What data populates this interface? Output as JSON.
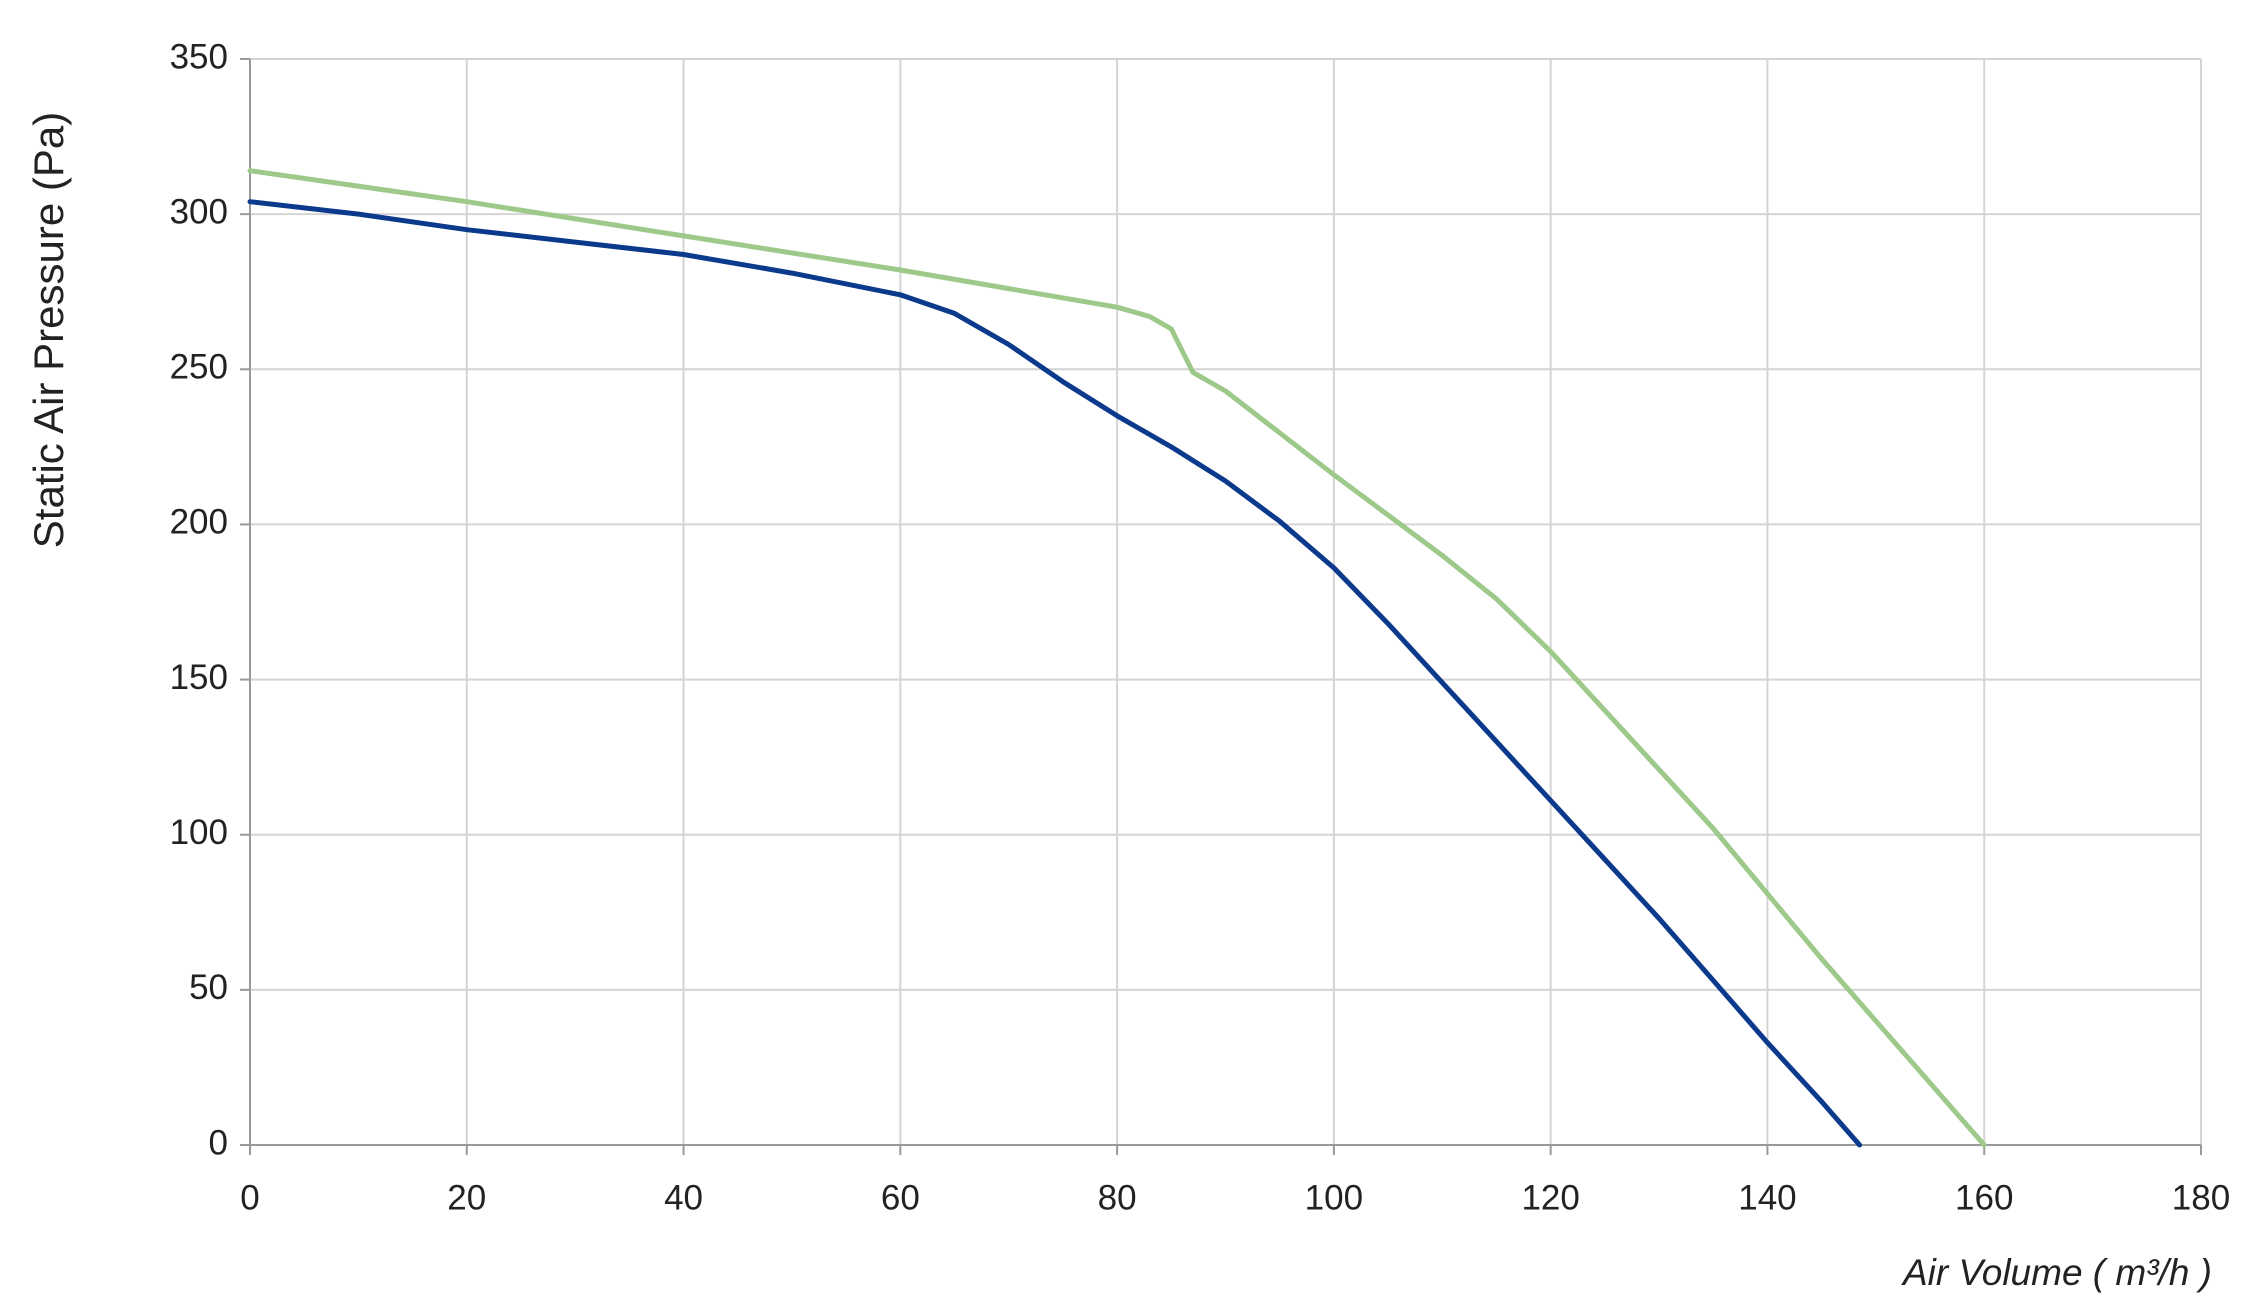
{
  "chart_data": {
    "type": "line",
    "xlabel": "Air Volume ( m³/h )",
    "ylabel": "Static Air Pressure  (Pa)",
    "xlim": [
      0,
      180
    ],
    "xticks": [
      0,
      20,
      40,
      60,
      80,
      100,
      120,
      140,
      160,
      180
    ],
    "ylim": [
      0,
      350
    ],
    "yticks": [
      0,
      50,
      100,
      150,
      200,
      250,
      300,
      350
    ],
    "grid": true,
    "series": [
      {
        "color": "#0b3a8c",
        "x": [
          0,
          10,
          20,
          30,
          40,
          50,
          60,
          65,
          70,
          75,
          80,
          85,
          90,
          95,
          100,
          105,
          110,
          115,
          120,
          125,
          130,
          135,
          140,
          145,
          148.5
        ],
        "values": [
          304,
          300,
          295,
          291,
          287,
          281,
          274,
          268,
          258,
          246,
          235,
          225,
          214,
          201,
          186,
          168,
          149,
          130,
          111,
          92,
          73,
          53,
          33,
          14,
          0
        ]
      },
      {
        "color": "#9dc98a",
        "x": [
          0,
          20,
          40,
          60,
          70,
          80,
          83,
          85,
          86,
          87,
          90,
          100,
          110,
          115,
          120,
          125,
          130,
          135,
          140,
          145,
          150,
          155,
          160
        ],
        "values": [
          314,
          304,
          293,
          282,
          276,
          270,
          267,
          263,
          256,
          249,
          243,
          216,
          190,
          176,
          159,
          140,
          121,
          102,
          81,
          60,
          40,
          20,
          0
        ]
      }
    ]
  }
}
